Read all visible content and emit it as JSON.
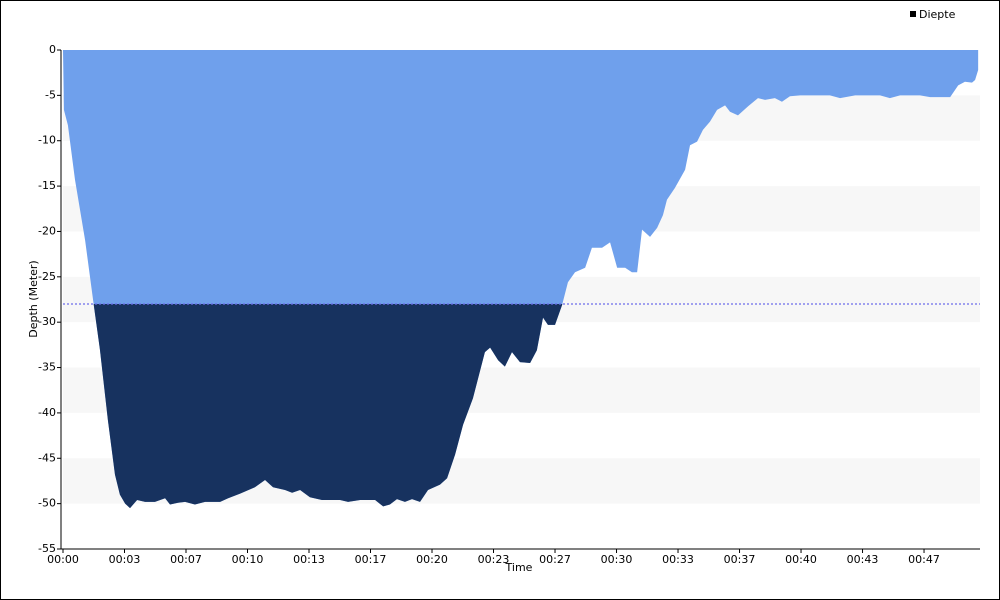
{
  "chart_data": {
    "type": "area",
    "xlabel": "Time",
    "ylabel": "Depth (Meter)",
    "x": [
      0,
      3,
      16,
      39,
      72,
      98,
      120,
      146,
      169,
      185,
      202,
      218,
      241,
      267,
      299,
      332,
      348,
      374,
      397,
      429,
      462,
      511,
      537,
      576,
      624,
      657,
      683,
      722,
      745,
      771,
      803,
      842,
      901,
      927,
      966,
      1015,
      1041,
      1063,
      1086,
      1112,
      1135,
      1161,
      1187,
      1226,
      1249,
      1275,
      1301,
      1333,
      1372,
      1389,
      1415,
      1437,
      1460,
      1486,
      1519,
      1541,
      1561,
      1577,
      1600,
      1623,
      1642,
      1665,
      1698,
      1720,
      1753,
      1779,
      1802,
      1828,
      1850,
      1867,
      1883,
      1909,
      1932,
      1951,
      1964,
      1990,
      2023,
      2039,
      2062,
      2081,
      2104,
      2127,
      2153,
      2169,
      2195,
      2228,
      2260,
      2283,
      2315,
      2338,
      2364,
      2397,
      2494,
      2527,
      2576,
      2657,
      2689,
      2722,
      2787,
      2820,
      2885,
      2911,
      2933,
      2956,
      2966,
      2976
    ],
    "series": [
      {
        "name": "Diepte",
        "color": "#6fa0ec",
        "below_color": "#17325f",
        "values": [
          0,
          -6.6,
          -8.3,
          -14.3,
          -21,
          -27.6,
          -33,
          -40.8,
          -46.8,
          -49,
          -50,
          -50.5,
          -49.6,
          -49.8,
          -49.8,
          -49.4,
          -50.1,
          -49.9,
          -49.8,
          -50.1,
          -49.8,
          -49.8,
          -49.4,
          -48.9,
          -48.2,
          -47.4,
          -48.2,
          -48.5,
          -48.8,
          -48.5,
          -49.3,
          -49.6,
          -49.6,
          -49.8,
          -49.6,
          -49.6,
          -50.3,
          -50.1,
          -49.5,
          -49.8,
          -49.5,
          -49.8,
          -48.5,
          -47.9,
          -47.2,
          -44.6,
          -41.3,
          -38.4,
          -33.3,
          -32.8,
          -34.2,
          -34.9,
          -33.3,
          -34.4,
          -34.5,
          -33.1,
          -29.5,
          -30.3,
          -30.3,
          -28.1,
          -25.6,
          -24.5,
          -24,
          -21.8,
          -21.8,
          -21.2,
          -24,
          -24,
          -24.5,
          -24.5,
          -19.8,
          -20.6,
          -19.6,
          -18.2,
          -16.5,
          -15.2,
          -13.2,
          -10.5,
          -10.1,
          -8.8,
          -7.9,
          -6.6,
          -6.1,
          -6.8,
          -7.2,
          -6.2,
          -5.3,
          -5.5,
          -5.3,
          -5.7,
          -5.1,
          -5,
          -5,
          -5.3,
          -5,
          -5,
          -5.3,
          -5,
          -5,
          -5.2,
          -5.2,
          -3.9,
          -3.5,
          -3.6,
          -3.3,
          -2.2
        ]
      }
    ],
    "threshold": -28,
    "threshold_color": "#6b6bea",
    "xlim": [
      0,
      2982
    ],
    "xticks": [
      {
        "value": 0,
        "label": "00:00"
      },
      {
        "value": 200,
        "label": "00:03"
      },
      {
        "value": 400,
        "label": "00:07"
      },
      {
        "value": 600,
        "label": "00:10"
      },
      {
        "value": 800,
        "label": "00:13"
      },
      {
        "value": 1000,
        "label": "00:17"
      },
      {
        "value": 1200,
        "label": "00:20"
      },
      {
        "value": 1400,
        "label": "00:23"
      },
      {
        "value": 1600,
        "label": "00:27"
      },
      {
        "value": 1800,
        "label": "00:30"
      },
      {
        "value": 2000,
        "label": "00:33"
      },
      {
        "value": 2200,
        "label": "00:37"
      },
      {
        "value": 2400,
        "label": "00:40"
      },
      {
        "value": 2600,
        "label": "00:43"
      },
      {
        "value": 2800,
        "label": "00:47"
      }
    ],
    "ylim": [
      -55,
      0
    ],
    "yticks": [
      0,
      -5,
      -10,
      -15,
      -20,
      -25,
      -30,
      -35,
      -40,
      -45,
      -50,
      -55
    ],
    "bands": true,
    "legend": "top-right"
  }
}
